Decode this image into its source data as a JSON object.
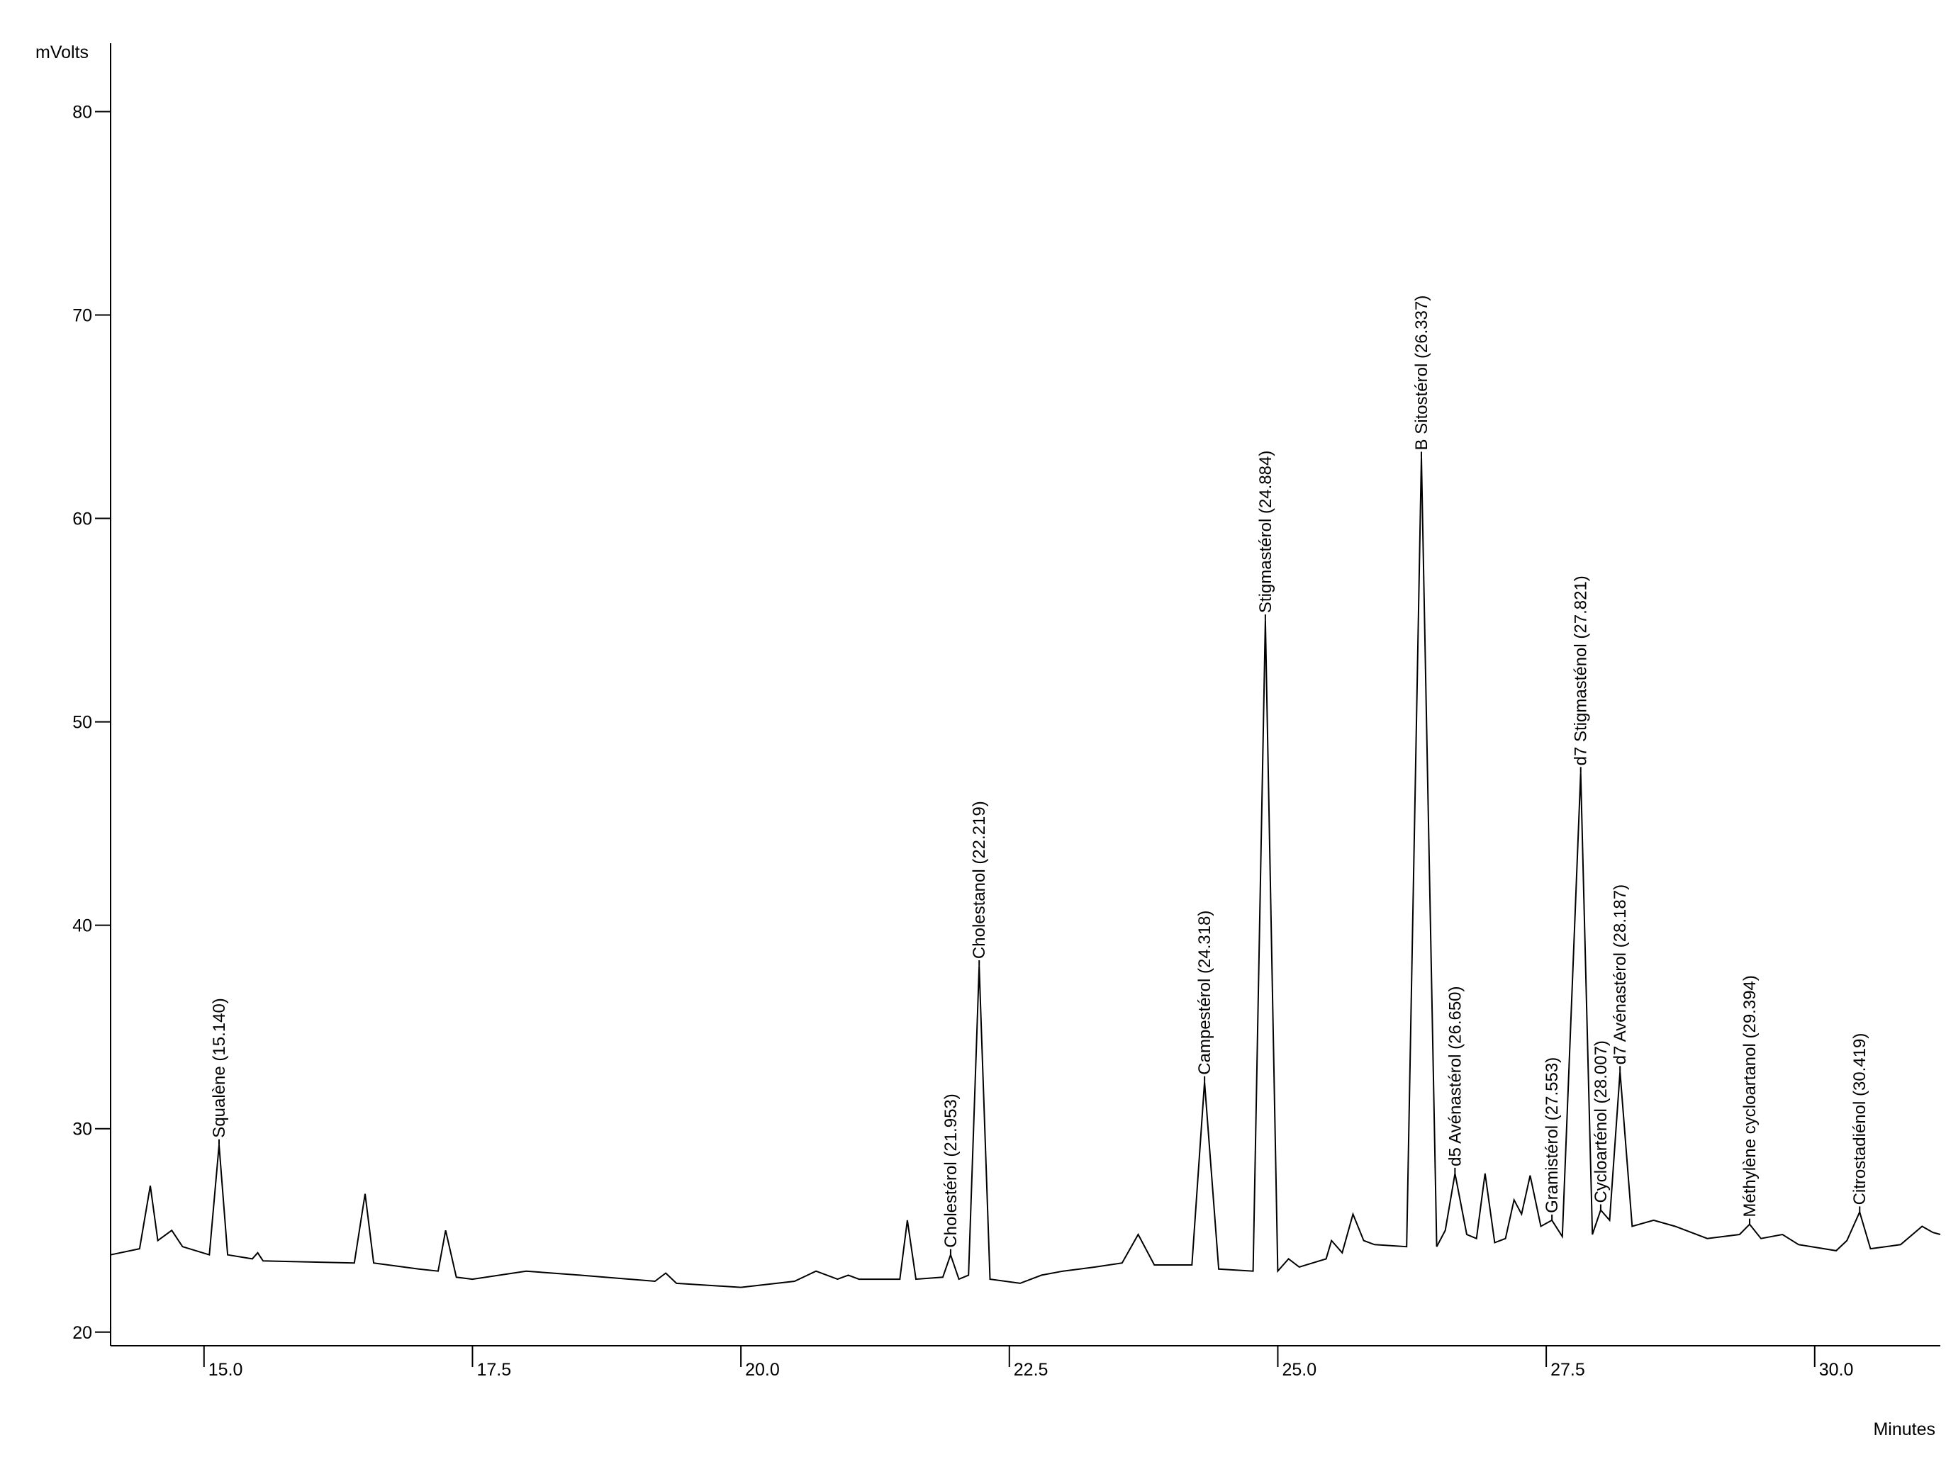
{
  "chart_data": {
    "type": "line",
    "y_label": "mVolts",
    "x_label": "Minutes",
    "xlim": [
      14.13,
      31.17
    ],
    "ylim": [
      19.33,
      83.36
    ],
    "xticks": [
      {
        "value": 15,
        "label": "15.0"
      },
      {
        "value": 17.5,
        "label": "17.5"
      },
      {
        "value": 20,
        "label": "20.0"
      },
      {
        "value": 22.5,
        "label": "22.5"
      },
      {
        "value": 25,
        "label": "25.0"
      },
      {
        "value": 27.5,
        "label": "27.5"
      },
      {
        "value": 30,
        "label": "30.0"
      }
    ],
    "yticks": [
      20,
      30,
      40,
      50,
      60,
      70,
      80
    ],
    "x": [
      14.13,
      14.4,
      14.5,
      14.57,
      14.7,
      14.8,
      15.05,
      15.14,
      15.22,
      15.45,
      15.5,
      15.55,
      16.4,
      16.5,
      16.58,
      17.0,
      17.18,
      17.25,
      17.35,
      17.5,
      18.0,
      18.5,
      19.2,
      19.3,
      19.4,
      20.0,
      20.5,
      20.7,
      20.9,
      21.0,
      21.1,
      21.48,
      21.55,
      21.63,
      21.88,
      21.953,
      22.03,
      22.12,
      22.219,
      22.32,
      22.6,
      22.8,
      23.0,
      23.3,
      23.55,
      23.7,
      23.85,
      24.2,
      24.318,
      24.45,
      24.77,
      24.884,
      25.0,
      25.1,
      25.2,
      25.45,
      25.5,
      25.6,
      25.7,
      25.8,
      25.9,
      26.2,
      26.337,
      26.48,
      26.56,
      26.65,
      26.76,
      26.85,
      26.93,
      27.02,
      27.12,
      27.2,
      27.27,
      27.35,
      27.45,
      27.553,
      27.65,
      27.821,
      27.93,
      28.007,
      28.09,
      28.187,
      28.3,
      28.5,
      28.7,
      29.0,
      29.3,
      29.394,
      29.5,
      29.7,
      29.85,
      30.2,
      30.3,
      30.419,
      30.52,
      30.8,
      31.0,
      31.1,
      31.17
    ],
    "series": [
      {
        "color": "#000000",
        "values": [
          23.8,
          24.1,
          27.2,
          24.5,
          25.0,
          24.2,
          23.8,
          29.2,
          23.8,
          23.6,
          23.9,
          23.5,
          23.4,
          26.8,
          23.4,
          23.1,
          23.0,
          25.0,
          22.7,
          22.6,
          23.0,
          22.8,
          22.5,
          22.9,
          22.4,
          22.2,
          22.5,
          23.0,
          22.6,
          22.8,
          22.6,
          22.6,
          25.5,
          22.6,
          22.7,
          23.8,
          22.6,
          22.8,
          38.0,
          22.6,
          22.4,
          22.8,
          23.0,
          23.2,
          23.4,
          24.8,
          23.3,
          23.3,
          32.3,
          23.1,
          23.0,
          55.0,
          23.0,
          23.6,
          23.2,
          23.6,
          24.5,
          23.9,
          25.8,
          24.5,
          24.3,
          24.2,
          63.0,
          24.2,
          25.0,
          27.8,
          24.8,
          24.6,
          27.8,
          24.4,
          24.6,
          26.5,
          25.8,
          27.7,
          25.2,
          25.5,
          24.7,
          47.5,
          24.8,
          26.0,
          25.5,
          32.8,
          25.2,
          25.5,
          25.2,
          24.6,
          24.8,
          25.3,
          24.6,
          24.8,
          24.3,
          24.0,
          24.5,
          25.9,
          24.1,
          24.3,
          25.2,
          24.9,
          24.8
        ]
      }
    ],
    "annotations": [
      {
        "label": "Squalène (15.140)",
        "x": 15.14,
        "y": 29.2
      },
      {
        "label": "Cholestérol (21.953)",
        "x": 21.953,
        "y": 23.8
      },
      {
        "label": "Cholestanol (22.219)",
        "x": 22.219,
        "y": 38.0
      },
      {
        "label": "Campestérol (24.318)",
        "x": 24.318,
        "y": 32.3
      },
      {
        "label": "Stigmastérol (24.884)",
        "x": 24.884,
        "y": 55.0
      },
      {
        "label": "B Sitostérol (26.337)",
        "x": 26.337,
        "y": 63.0
      },
      {
        "label": "d5 Avénastérol (26.650)",
        "x": 26.65,
        "y": 27.8
      },
      {
        "label": "Gramistérol (27.553)",
        "x": 27.553,
        "y": 25.5
      },
      {
        "label": "d7 Stigmasténol (27.821)",
        "x": 27.821,
        "y": 47.5
      },
      {
        "label": "Cycloarténol (28.007)",
        "x": 28.007,
        "y": 26.0
      },
      {
        "label": "d7 Avénastérol (28.187)",
        "x": 28.187,
        "y": 32.8
      },
      {
        "label": "Méthylène cycloartanol (29.394)",
        "x": 29.394,
        "y": 25.3
      },
      {
        "label": "Citrostadiénol (30.419)",
        "x": 30.419,
        "y": 25.9
      }
    ]
  }
}
